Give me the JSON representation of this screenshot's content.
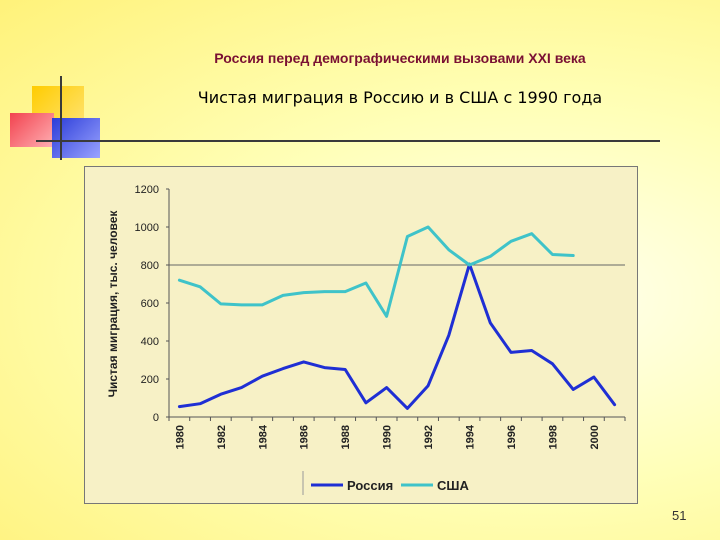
{
  "slide": {
    "title": "Россия перед демографическими вызовами XXI века",
    "subtitle": "Чистая миграция в Россию и в США с 1990 года",
    "page_number": "51"
  },
  "colors": {
    "russia": "#1f2fd4",
    "usa": "#3fc3c9",
    "deco_yellow": "#ffd42a",
    "deco_red": "#f2434f",
    "deco_blue": "#2b3cd8"
  },
  "chart_data": {
    "type": "line",
    "title": "",
    "xlabel": "",
    "ylabel": "Чистая миграция, тыс. человек",
    "xlim": [
      1980,
      2001
    ],
    "ylim": [
      0,
      1200
    ],
    "yticks": [
      0,
      200,
      400,
      600,
      800,
      1000,
      1200
    ],
    "xticks": [
      1980,
      1982,
      1984,
      1986,
      1988,
      1990,
      1992,
      1994,
      1996,
      1998,
      2000
    ],
    "reference_line": 800,
    "legend_position": "bottom",
    "series": [
      {
        "name": "Россия",
        "color_key": "russia",
        "x": [
          1980,
          1981,
          1982,
          1983,
          1984,
          1985,
          1986,
          1987,
          1988,
          1989,
          1990,
          1991,
          1992,
          1993,
          1994,
          1995,
          1996,
          1997,
          1998,
          1999,
          2000,
          2001
        ],
        "values": [
          55,
          70,
          120,
          155,
          215,
          255,
          290,
          260,
          250,
          75,
          155,
          45,
          165,
          430,
          805,
          495,
          340,
          350,
          280,
          145,
          210,
          65
        ]
      },
      {
        "name": "США",
        "color_key": "usa",
        "x": [
          1980,
          1981,
          1982,
          1983,
          1984,
          1985,
          1986,
          1987,
          1988,
          1989,
          1990,
          1991,
          1992,
          1993,
          1994,
          1995,
          1996,
          1997,
          1998,
          1999
        ],
        "values": [
          720,
          685,
          595,
          590,
          590,
          640,
          655,
          660,
          660,
          705,
          530,
          950,
          1000,
          880,
          800,
          845,
          925,
          965,
          855,
          850
        ]
      }
    ]
  }
}
